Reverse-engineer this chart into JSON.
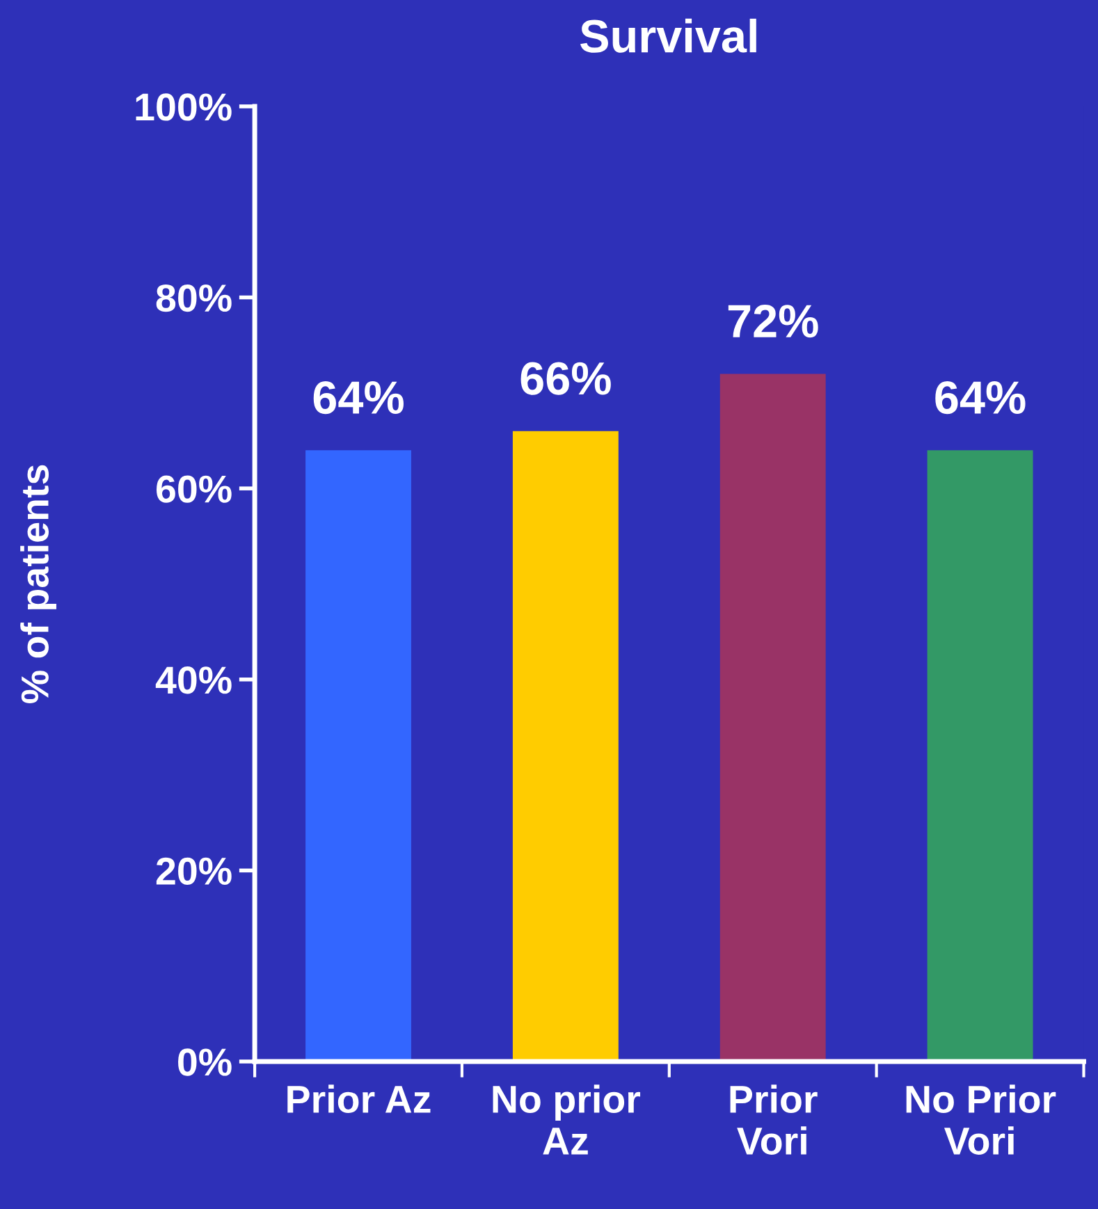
{
  "chart_data": {
    "type": "bar",
    "title": "Survival",
    "ylabel": "% of patients",
    "categories": [
      "Prior Az",
      "No prior\nAz",
      "Prior\nVori",
      "No Prior\nVori"
    ],
    "values": [
      64,
      66,
      72,
      64
    ],
    "colors": [
      "#3366ff",
      "#ffcc00",
      "#993366",
      "#339966"
    ],
    "value_labels": [
      "64%",
      "66%",
      "72%",
      "64%"
    ],
    "ylim": [
      0,
      100
    ],
    "yticks": [
      {
        "value": 0,
        "label": "0%"
      },
      {
        "value": 20,
        "label": "20%"
      },
      {
        "value": 40,
        "label": "40%"
      },
      {
        "value": 60,
        "label": "60%"
      },
      {
        "value": 80,
        "label": "80%"
      },
      {
        "value": 100,
        "label": "100%"
      }
    ],
    "grid": false,
    "legend": false
  }
}
